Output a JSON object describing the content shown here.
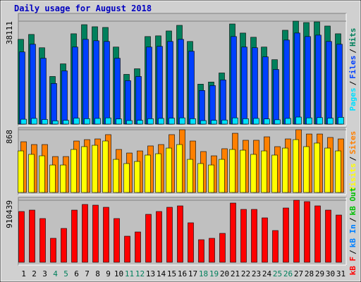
{
  "chart_data": [
    {
      "type": "bar",
      "title": "Daily usage for August 2018",
      "title_color": "#0000c0",
      "categories": [
        "1",
        "2",
        "3",
        "4",
        "5",
        "6",
        "7",
        "8",
        "9",
        "10",
        "11",
        "12",
        "13",
        "14",
        "15",
        "16",
        "17",
        "18",
        "19",
        "20",
        "21",
        "22",
        "23",
        "24",
        "25",
        "26",
        "27",
        "28",
        "29",
        "30",
        "31"
      ],
      "category_colors": [
        "#000000",
        "#000000",
        "#000000",
        "#00805c",
        "#00805c",
        "#000000",
        "#000000",
        "#000000",
        "#000000",
        "#000000",
        "#00805c",
        "#00805c",
        "#000000",
        "#000000",
        "#000000",
        "#000000",
        "#000000",
        "#00805c",
        "#00805c",
        "#000000",
        "#000000",
        "#000000",
        "#000000",
        "#000000",
        "#00805c",
        "#00805c",
        "#000000",
        "#000000",
        "#000000",
        "#000000",
        "#000000"
      ],
      "legend_separator": "/",
      "ylim": [
        0,
        38111
      ],
      "yticks": [
        38111
      ],
      "grid": true,
      "series": [
        {
          "name": "Hits",
          "color": "#00805c",
          "values": [
            31370,
            33190,
            28260,
            17630,
            22300,
            33440,
            36810,
            36040,
            35780,
            28520,
            18410,
            20480,
            32410,
            32670,
            34480,
            36560,
            30590,
            14780,
            15560,
            18930,
            37070,
            33700,
            32150,
            28520,
            23850,
            34740,
            38111,
            37590,
            37850,
            36300,
            33440
          ]
        },
        {
          "name": "Files",
          "color": "#0040ff",
          "values": [
            26700,
            29560,
            24370,
            15040,
            19700,
            28520,
            31370,
            30850,
            30600,
            24370,
            16080,
            17630,
            28520,
            28780,
            30600,
            31370,
            26970,
            12450,
            14260,
            16340,
            32410,
            28520,
            28260,
            24890,
            20220,
            31110,
            33710,
            32410,
            32930,
            30600,
            29560
          ]
        },
        {
          "name": "Pages",
          "color": "#00e0ff",
          "values": [
            1800,
            2100,
            1700,
            1200,
            1400,
            2200,
            2000,
            2100,
            2300,
            1900,
            1300,
            1400,
            2000,
            2100,
            2200,
            2300,
            2000,
            1300,
            1400,
            1500,
            2300,
            2000,
            2100,
            1900,
            1600,
            2100,
            2600,
            2300,
            2400,
            2200,
            2500
          ]
        }
      ]
    },
    {
      "type": "bar",
      "ylim": [
        0,
        868
      ],
      "yticks": [
        868
      ],
      "grid": true,
      "series": [
        {
          "name": "Sites",
          "color": "#ff8000",
          "values": [
            702,
            663,
            663,
            497,
            497,
            712,
            731,
            741,
            800,
            595,
            546,
            575,
            644,
            663,
            800,
            868,
            712,
            566,
            507,
            605,
            819,
            722,
            722,
            770,
            634,
            741,
            868,
            809,
            809,
            761,
            741
          ]
        },
        {
          "name": "Visits",
          "color": "#ffff00",
          "values": [
            575,
            527,
            507,
            380,
            380,
            595,
            634,
            653,
            712,
            458,
            400,
            429,
            517,
            536,
            614,
            663,
            458,
            400,
            380,
            458,
            595,
            585,
            527,
            575,
            517,
            614,
            731,
            634,
            683,
            614,
            575
          ]
        }
      ]
    },
    {
      "type": "bar",
      "ylim": [
        0,
        910439
      ],
      "yticks": [
        910439
      ],
      "grid": true,
      "series": [
        {
          "name": "kB F",
          "color": "#ff0000",
          "values": [
            744900,
            765600,
            641500,
            351800,
            496600,
            765600,
            848400,
            838000,
            807000,
            641500,
            382800,
            444900,
            703500,
            744900,
            807000,
            827700,
            579400,
            331100,
            351800,
            424200,
            869100,
            776000,
            776000,
            651800,
            465600,
            796600,
            910439,
            889800,
            827700,
            765600,
            693200
          ]
        }
      ],
      "legend_only": [
        {
          "name": "kB In",
          "color": "#0080ff"
        },
        {
          "name": "kB Out",
          "color": "#00c000"
        }
      ]
    }
  ]
}
